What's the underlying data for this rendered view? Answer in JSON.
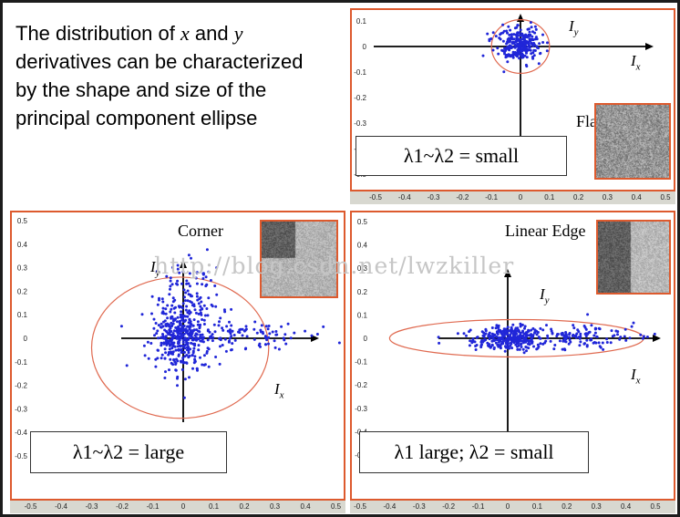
{
  "slide": {
    "description": [
      [
        {
          "t": "The distribution of "
        },
        {
          "t": "x",
          "italic": true
        },
        {
          "t": " and "
        },
        {
          "t": "y",
          "italic": true
        }
      ],
      [
        {
          "t": "derivatives can be characterized"
        }
      ],
      [
        {
          "t": "by the shape and size of the"
        }
      ],
      [
        {
          "t": "principal component ellipse"
        }
      ]
    ],
    "watermark": "http://blog.csdn.net/lwzkiller"
  },
  "colors": {
    "panel_border": "#dd5a2e",
    "point": "#2026d8",
    "ellipse": "#e06a50",
    "axis": "#000000",
    "tick": "#222222",
    "watermark": "#c6c6c6",
    "tick_strip": "#d8d8d0"
  },
  "chart_data": [
    {
      "id": "flat",
      "type": "scatter",
      "title": "Flat",
      "eigen_label": "λ1~λ2 = small",
      "xlabel": {
        "base": "I",
        "sub": "x"
      },
      "ylabel": {
        "base": "I",
        "sub": "y"
      },
      "xlim": [
        -0.55,
        0.55
      ],
      "ylim": [
        -0.55,
        0.12
      ],
      "xticks": [
        -0.5,
        -0.4,
        -0.3,
        -0.2,
        -0.1,
        0,
        0.1,
        0.2,
        0.3,
        0.4,
        0.5
      ],
      "yticks": [
        0.1,
        0,
        -0.1,
        -0.2,
        -0.3,
        -0.4,
        -0.5
      ],
      "grid": false,
      "ellipse": {
        "cx": 0,
        "cy": 0,
        "rx": 0.1,
        "ry": 0.105
      },
      "clusters": [
        {
          "cx": 0,
          "cy": 0.01,
          "sx": 0.035,
          "sy": 0.03,
          "n": 260
        },
        {
          "cx": 0,
          "cy": 0,
          "sx": 0.07,
          "sy": 0.055,
          "n": 25
        }
      ],
      "seed": 3,
      "patch": {
        "kind": "flat",
        "alt": "uniform gray noise patch"
      }
    },
    {
      "id": "corner",
      "type": "scatter",
      "title": "Corner",
      "eigen_label": "λ1~λ2 = large",
      "xlabel": {
        "base": "I",
        "sub": "x"
      },
      "ylabel": {
        "base": "I",
        "sub": "y"
      },
      "xlim": [
        -0.55,
        0.52
      ],
      "ylim": [
        -0.45,
        0.5
      ],
      "xticks": [
        -0.5,
        -0.4,
        -0.3,
        -0.2,
        -0.1,
        0,
        0.1,
        0.2,
        0.3,
        0.4,
        0.5
      ],
      "yticks": [
        0.5,
        0.4,
        0.3,
        0.2,
        0.1,
        0,
        -0.1,
        -0.2,
        -0.3,
        -0.4,
        -0.5
      ],
      "grid": false,
      "ellipse": {
        "cx": -0.01,
        "cy": -0.04,
        "rx": 0.29,
        "ry": 0.3
      },
      "clusters": [
        {
          "cx": -0.01,
          "cy": 0,
          "sx": 0.04,
          "sy": 0.07,
          "n": 300
        },
        {
          "cx": 0.02,
          "cy": 0.16,
          "sx": 0.045,
          "sy": 0.09,
          "n": 120
        },
        {
          "cx": 0.17,
          "cy": 0.01,
          "sx": 0.12,
          "sy": 0.03,
          "n": 110
        },
        {
          "cx": 0.03,
          "cy": 0.05,
          "sx": 0.11,
          "sy": 0.13,
          "n": 45
        }
      ],
      "seed": 5,
      "patch": {
        "kind": "corner",
        "alt": "corner patch: dark square on light background"
      }
    },
    {
      "id": "edge",
      "type": "scatter",
      "title": "Linear Edge",
      "eigen_label": "λ1 large; λ2 = small",
      "xlabel": {
        "base": "I",
        "sub": "x"
      },
      "ylabel": {
        "base": "I",
        "sub": "y"
      },
      "xlim": [
        -0.55,
        0.52
      ],
      "ylim": [
        -0.5,
        0.5
      ],
      "xticks": [
        -0.5,
        -0.4,
        -0.3,
        -0.2,
        -0.1,
        0,
        0.1,
        0.2,
        0.3,
        0.4,
        0.5
      ],
      "yticks": [
        0.5,
        0.4,
        0.3,
        0.2,
        0.1,
        0,
        -0.1,
        -0.2,
        -0.3,
        -0.4,
        -0.5
      ],
      "grid": false,
      "ellipse": {
        "cx": 0.03,
        "cy": 0,
        "rx": 0.43,
        "ry": 0.08
      },
      "clusters": [
        {
          "cx": 0.01,
          "cy": 0.002,
          "sx": 0.05,
          "sy": 0.028,
          "n": 240
        },
        {
          "cx": 0.2,
          "cy": 0.005,
          "sx": 0.13,
          "sy": 0.025,
          "n": 170
        },
        {
          "cx": -0.09,
          "cy": 0,
          "sx": 0.04,
          "sy": 0.018,
          "n": 35
        }
      ],
      "seed": 9,
      "patch": {
        "kind": "edge",
        "alt": "vertical edge patch: dark left half, light right half"
      }
    }
  ]
}
